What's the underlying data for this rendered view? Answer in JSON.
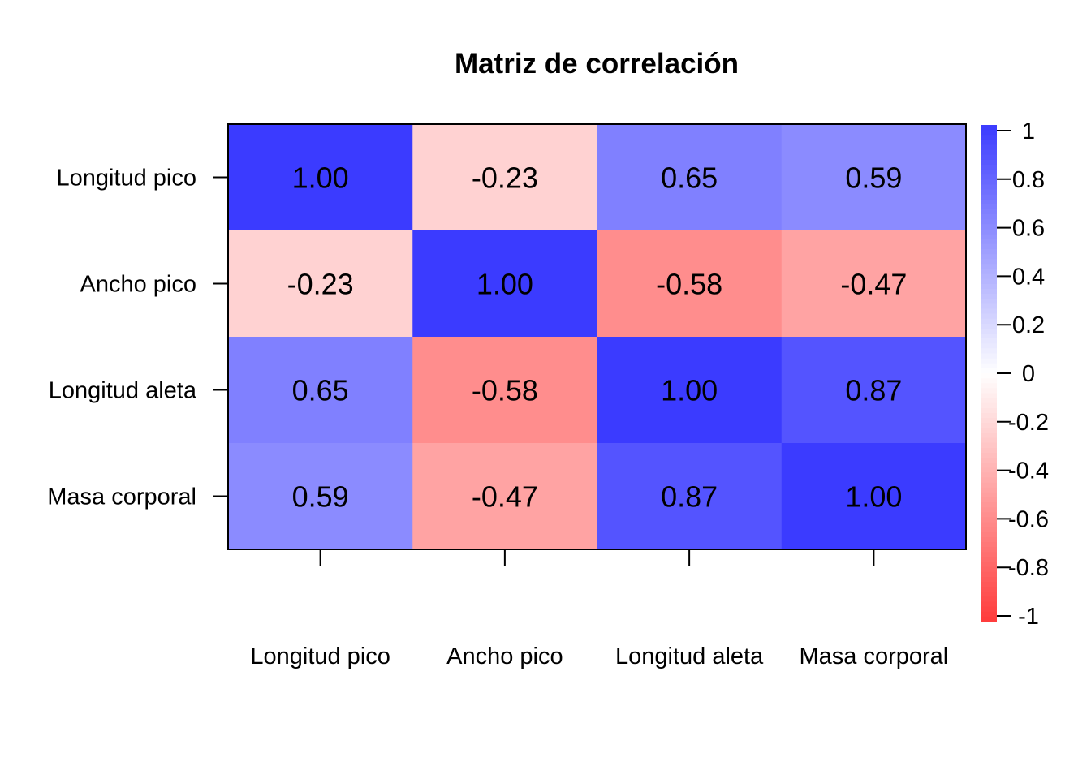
{
  "chart_data": {
    "type": "heatmap",
    "title": "Matriz de correlación",
    "row_labels": [
      "Longitud pico",
      "Ancho pico",
      "Longitud aleta",
      "Masa corporal"
    ],
    "col_labels": [
      "Longitud pico",
      "Ancho pico",
      "Longitud aleta",
      "Masa corporal"
    ],
    "values": [
      [
        1.0,
        -0.23,
        0.65,
        0.59
      ],
      [
        -0.23,
        1.0,
        -0.58,
        -0.47
      ],
      [
        0.65,
        -0.58,
        1.0,
        0.87
      ],
      [
        0.59,
        -0.47,
        0.87,
        1.0
      ]
    ],
    "value_labels": [
      [
        "1.00",
        "-0.23",
        "0.65",
        "0.59"
      ],
      [
        "-0.23",
        "1.00",
        "-0.58",
        "-0.47"
      ],
      [
        "0.65",
        "-0.58",
        "1.00",
        "0.87"
      ],
      [
        "0.59",
        "-0.47",
        "0.87",
        "1.00"
      ]
    ],
    "color_scale": {
      "min": -1,
      "max": 1,
      "low_color": "#ff3b3b",
      "mid_color": "#ffffff",
      "high_color": "#3b3bff",
      "ticks": [
        "1",
        "0.8",
        "0.6",
        "0.4",
        "0.2",
        "0",
        "-0.2",
        "-0.4",
        "-0.6",
        "-0.8",
        "-1"
      ]
    },
    "legend": "right"
  }
}
